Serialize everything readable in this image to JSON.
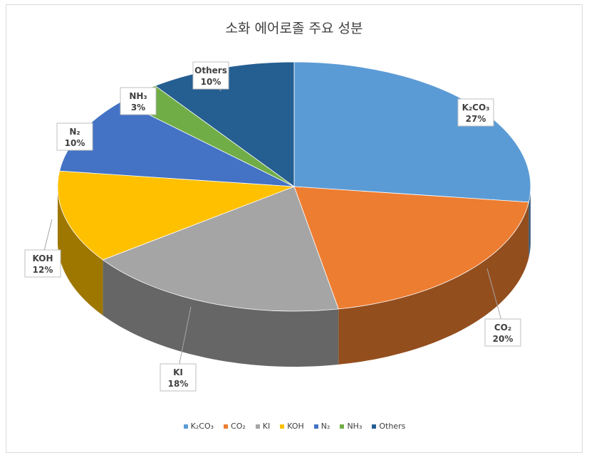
{
  "chart_data": {
    "type": "pie",
    "title": "소화 에어로졸 주요 성분",
    "categories": [
      "K₂CO₃",
      "CO₂",
      "KI",
      "KOH",
      "N₂",
      "NH₃",
      "Others"
    ],
    "values": [
      27,
      20,
      18,
      12,
      10,
      3,
      10
    ],
    "value_labels": [
      "27%",
      "20%",
      "18%",
      "12%",
      "10%",
      "3%",
      "10%"
    ],
    "colors": [
      "#5b9bd5",
      "#ed7d31",
      "#a5a5a5",
      "#ffc000",
      "#4472c4",
      "#70ad47",
      "#255e91"
    ],
    "three_d": true,
    "legend_position": "bottom"
  }
}
